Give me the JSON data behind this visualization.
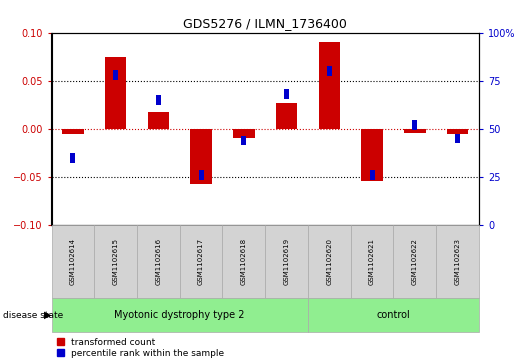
{
  "title": "GDS5276 / ILMN_1736400",
  "samples": [
    "GSM1102614",
    "GSM1102615",
    "GSM1102616",
    "GSM1102617",
    "GSM1102618",
    "GSM1102619",
    "GSM1102620",
    "GSM1102621",
    "GSM1102622",
    "GSM1102623"
  ],
  "red_values": [
    -0.005,
    0.075,
    0.018,
    -0.057,
    -0.01,
    0.027,
    0.09,
    -0.054,
    -0.004,
    -0.005
  ],
  "blue_values_pct": [
    35,
    78,
    65,
    26,
    44,
    68,
    80,
    26,
    52,
    45
  ],
  "ylim_left": [
    -0.1,
    0.1
  ],
  "ylim_right": [
    0,
    100
  ],
  "yticks_left": [
    -0.1,
    -0.05,
    0,
    0.05,
    0.1
  ],
  "yticks_right": [
    0,
    25,
    50,
    75,
    100
  ],
  "ytick_labels_right": [
    "0",
    "25",
    "50",
    "75",
    "100%"
  ],
  "group1_label": "Myotonic dystrophy type 2",
  "group2_label": "control",
  "group1_count": 6,
  "group2_count": 4,
  "disease_state_label": "disease state",
  "legend1": "transformed count",
  "legend2": "percentile rank within the sample",
  "bar_color_red": "#cc0000",
  "bar_color_blue": "#0000cc",
  "group1_color": "#90ee90",
  "group2_color": "#90ee90",
  "label_bg_color": "#d3d3d3",
  "zero_line_color": "#cc0000",
  "bar_width": 0.5,
  "blue_bar_width": 0.12
}
